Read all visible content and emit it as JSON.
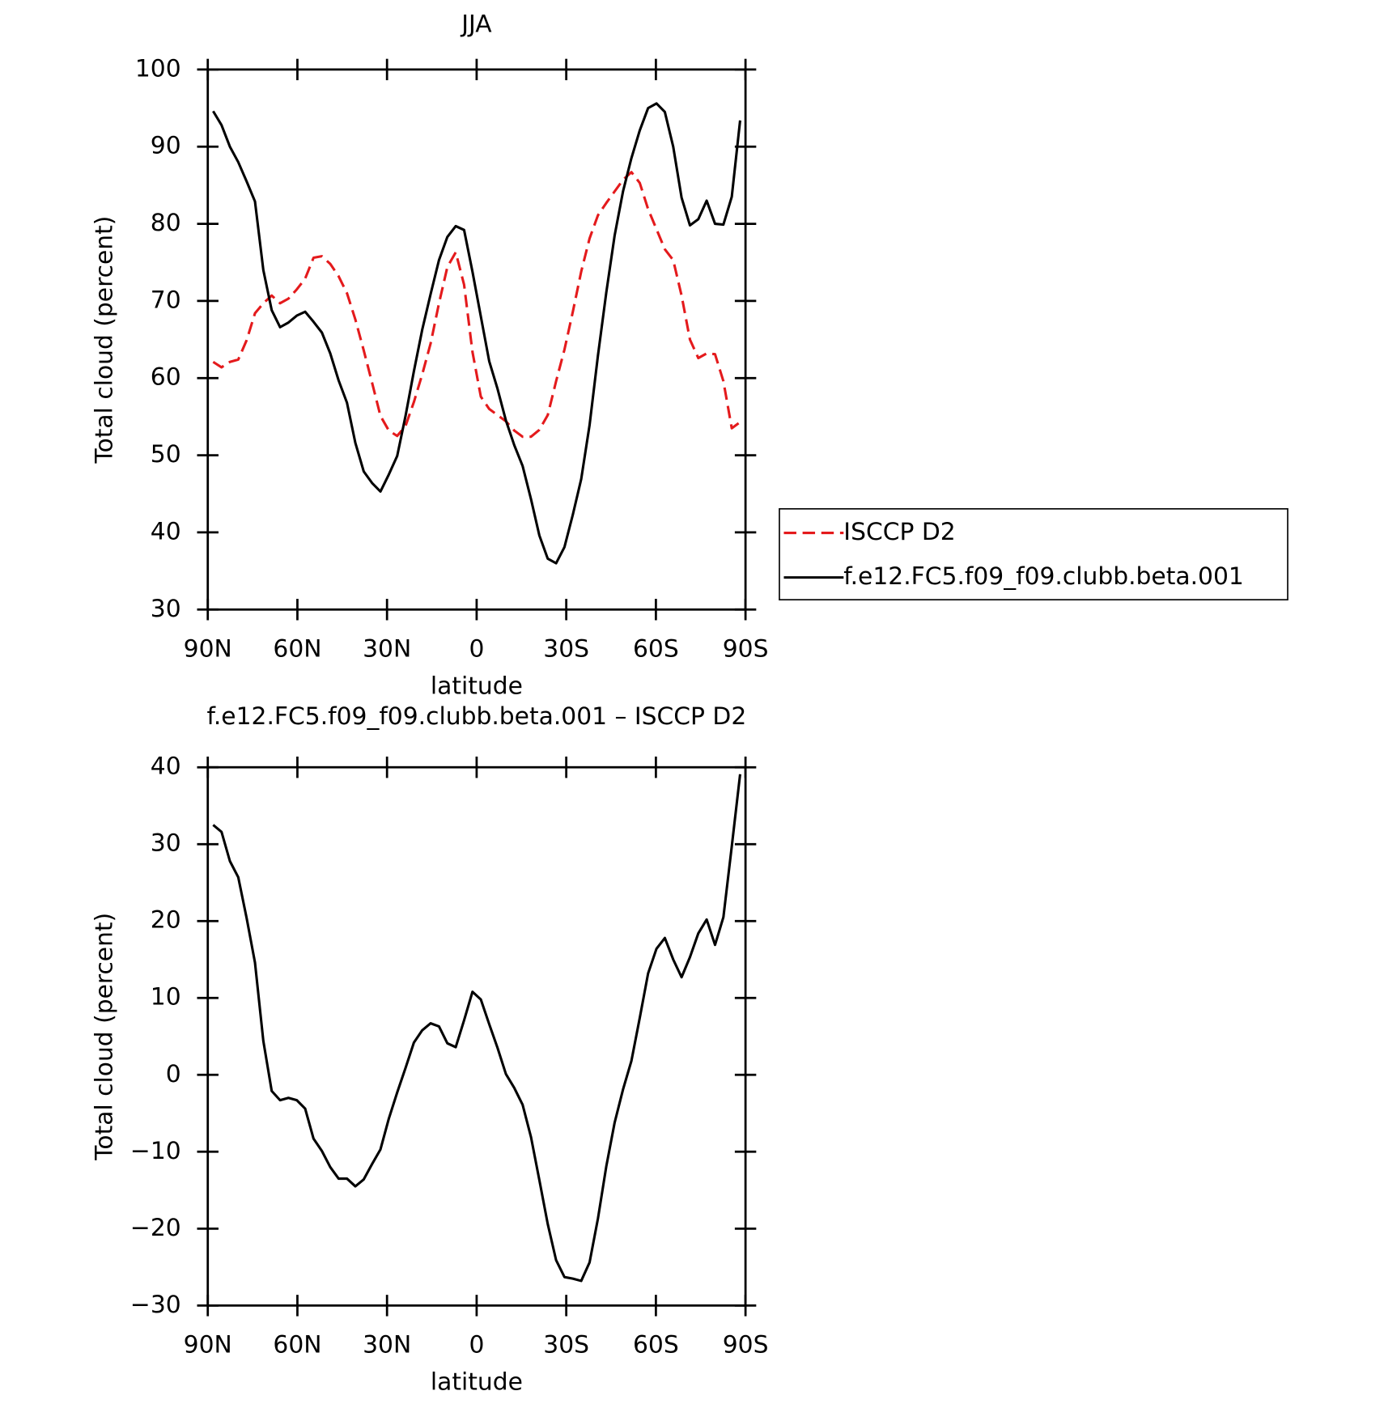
{
  "chart_data": [
    {
      "type": "line",
      "title": "JJA",
      "xlabel": "latitude",
      "ylabel": "Total cloud (percent)",
      "x": [
        88.2,
        85.4,
        82.6,
        79.8,
        77,
        74.2,
        71.4,
        68.6,
        65.8,
        63,
        60.2,
        57.4,
        54.6,
        51.8,
        49,
        46.2,
        43.4,
        40.6,
        37.8,
        35,
        32.2,
        29.4,
        26.6,
        23.8,
        21,
        18.2,
        15.4,
        12.6,
        9.8,
        7,
        4.2,
        1.4,
        -1.4,
        -4.2,
        -7,
        -9.8,
        -12.6,
        -15.4,
        -18.2,
        -21,
        -23.8,
        -26.6,
        -29.4,
        -32.2,
        -35,
        -37.8,
        -40.6,
        -43.4,
        -46.2,
        -49,
        -51.8,
        -54.6,
        -57.4,
        -60.2,
        -63,
        -65.8,
        -68.6,
        -71.4,
        -74.2,
        -77,
        -79.8,
        -82.6,
        -85.4,
        -88.2
      ],
      "series": [
        {
          "name": "ISCCP D2",
          "color": "#e41a1c",
          "style": "dashed",
          "values": [
            62.1,
            61.4,
            62.1,
            62.4,
            64.9,
            68.4,
            69.7,
            70.7,
            69.7,
            70.3,
            71.5,
            72.9,
            75.6,
            75.8,
            74.8,
            73.2,
            71,
            67.6,
            63.6,
            59.4,
            55.1,
            53.2,
            52.5,
            53.8,
            56.9,
            60.5,
            64.5,
            69.7,
            74.4,
            76.3,
            72.1,
            63.4,
            57.6,
            56,
            55.2,
            54.4,
            53.2,
            52.4,
            52.4,
            53.3,
            55.2,
            59.6,
            63.7,
            68.6,
            73.8,
            78.1,
            81.1,
            82.7,
            84.2,
            85.7,
            86.7,
            85.3,
            81.9,
            79.3,
            76.7,
            75.3,
            70.7,
            65,
            62.6,
            63.2,
            63.1,
            59.6,
            53.5,
            54.3
          ]
        },
        {
          "name": "f.e12.FC5.f09_f09.clubb.beta.001",
          "color": "#000000",
          "style": "solid",
          "values": [
            94.6,
            92.8,
            90,
            88,
            85.5,
            82.9,
            74,
            68.8,
            66.6,
            67.2,
            68.1,
            68.6,
            67.3,
            65.9,
            63.2,
            59.7,
            56.8,
            51.6,
            47.9,
            46.4,
            45.3,
            47.5,
            49.9,
            55.1,
            60.9,
            66.3,
            70.9,
            75.3,
            78.3,
            79.7,
            79.2,
            73.8,
            68,
            62.2,
            58.6,
            54.5,
            51.3,
            48.6,
            44.3,
            39.6,
            36.6,
            36,
            38.1,
            42.3,
            46.9,
            53.9,
            62.9,
            71.1,
            78.5,
            84.2,
            88.5,
            92.1,
            95,
            95.6,
            94.5,
            90,
            83.4,
            79.8,
            80.6,
            83,
            80,
            79.9,
            83.5,
            93.4
          ]
        }
      ],
      "xlim": [
        90,
        -90
      ],
      "xticks": [
        {
          "value": 90,
          "label": "90N"
        },
        {
          "value": 60,
          "label": "60N"
        },
        {
          "value": 30,
          "label": "30N"
        },
        0,
        {
          "value": -30,
          "label": "30S"
        },
        {
          "value": -60,
          "label": "60S"
        },
        {
          "value": -90,
          "label": "90S"
        }
      ],
      "ylim": [
        30,
        100
      ],
      "yticks": [
        30,
        40,
        50,
        60,
        70,
        80,
        90,
        100
      ],
      "legend": "right"
    },
    {
      "type": "line",
      "title": "f.e12.FC5.f09_f09.clubb.beta.001 – ISCCP D2",
      "xlabel": "latitude",
      "ylabel": "Total cloud (percent)",
      "x": [
        88.2,
        85.4,
        82.6,
        79.8,
        77,
        74.2,
        71.4,
        68.6,
        65.8,
        63,
        60.2,
        57.4,
        54.6,
        51.8,
        49,
        46.2,
        43.4,
        40.6,
        37.8,
        35,
        32.2,
        29.4,
        26.6,
        23.8,
        21,
        18.2,
        15.4,
        12.6,
        9.8,
        7,
        4.2,
        1.4,
        -1.4,
        -4.2,
        -7,
        -9.8,
        -12.6,
        -15.4,
        -18.2,
        -21,
        -23.8,
        -26.6,
        -29.4,
        -32.2,
        -35,
        -37.8,
        -40.6,
        -43.4,
        -46.2,
        -49,
        -51.8,
        -54.6,
        -57.4,
        -60.2,
        -63,
        -65.8,
        -68.6,
        -71.4,
        -74.2,
        -77,
        -79.8,
        -82.6,
        -85.4,
        -88.2
      ],
      "series": [
        {
          "color": "#000000",
          "style": "solid",
          "values": [
            32.5,
            31.6,
            27.8,
            25.7,
            20.4,
            14.6,
            4.4,
            -2.1,
            -3.3,
            -3,
            -3.3,
            -4.4,
            -8.3,
            -9.9,
            -12,
            -13.5,
            -13.5,
            -14.5,
            -13.6,
            -11.6,
            -9.7,
            -5.7,
            -2.3,
            0.9,
            4.2,
            5.8,
            6.7,
            6.3,
            4.1,
            3.6,
            7.1,
            10.8,
            9.8,
            6.6,
            3.5,
            0.1,
            -1.7,
            -3.9,
            -8.1,
            -13.7,
            -19.4,
            -24.1,
            -26.3,
            -26.5,
            -26.8,
            -24.4,
            -18.7,
            -11.9,
            -6.2,
            -1.9,
            1.8,
            7.4,
            13.2,
            16.4,
            17.8,
            15,
            12.7,
            15.3,
            18.4,
            20.2,
            16.9,
            20.5,
            29.7,
            39.1
          ]
        }
      ],
      "xlim": [
        90,
        -90
      ],
      "xticks": [
        {
          "value": 90,
          "label": "90N"
        },
        {
          "value": 60,
          "label": "60N"
        },
        {
          "value": 30,
          "label": "30N"
        },
        0,
        {
          "value": -30,
          "label": "30S"
        },
        {
          "value": -60,
          "label": "60S"
        },
        {
          "value": -90,
          "label": "90S"
        }
      ],
      "ylim": [
        -30,
        40
      ],
      "yticks": [
        {
          "value": -30,
          "label": "−30"
        },
        {
          "value": -20,
          "label": "−20"
        },
        {
          "value": -10,
          "label": "−10"
        },
        0,
        10,
        20,
        30,
        40
      ]
    }
  ]
}
